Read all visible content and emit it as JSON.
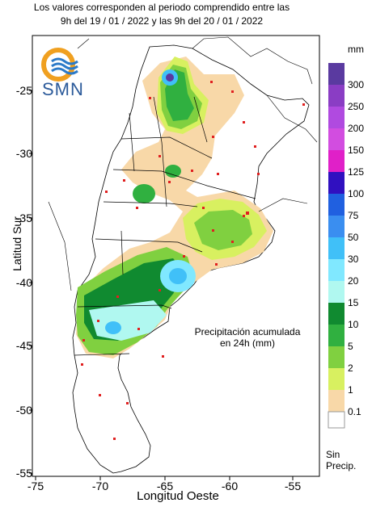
{
  "header": {
    "line1": "Los valores corresponden al periodo comprendido entre las",
    "line2": "9h del 19 / 01 / 2022  y las 9h del 20 / 01 / 2022"
  },
  "logo": {
    "text": "SMN"
  },
  "axes": {
    "xlabel": "Longitud Oeste",
    "ylabel": "Latitud Sur",
    "xticks": [
      "-75",
      "-70",
      "-65",
      "-60",
      "-55"
    ],
    "yticks": [
      "-25",
      "-30",
      "-35",
      "-40",
      "-45",
      "-50",
      "-55"
    ]
  },
  "legend": {
    "unit": "mm",
    "labels": [
      "300",
      "250",
      "200",
      "150",
      "125",
      "100",
      "75",
      "50",
      "30",
      "20",
      "15",
      "10",
      "5",
      "2",
      "1",
      "0.1"
    ],
    "colors": [
      "#5a3aa0",
      "#8a3dc4",
      "#b04ae0",
      "#d24de0",
      "#e020c8",
      "#3010c0",
      "#2060e0",
      "#3a8ef0",
      "#40c0f8",
      "#80e8ff",
      "#b0f8f0",
      "#108a30",
      "#30b040",
      "#80d040",
      "#d8f060",
      "#f8d8a8"
    ],
    "no_precip_line1": "Sin",
    "no_precip_line2": "Precip."
  },
  "annotation": {
    "line1": "Precipitación acumulada",
    "line2": "en 24h (mm)"
  }
}
